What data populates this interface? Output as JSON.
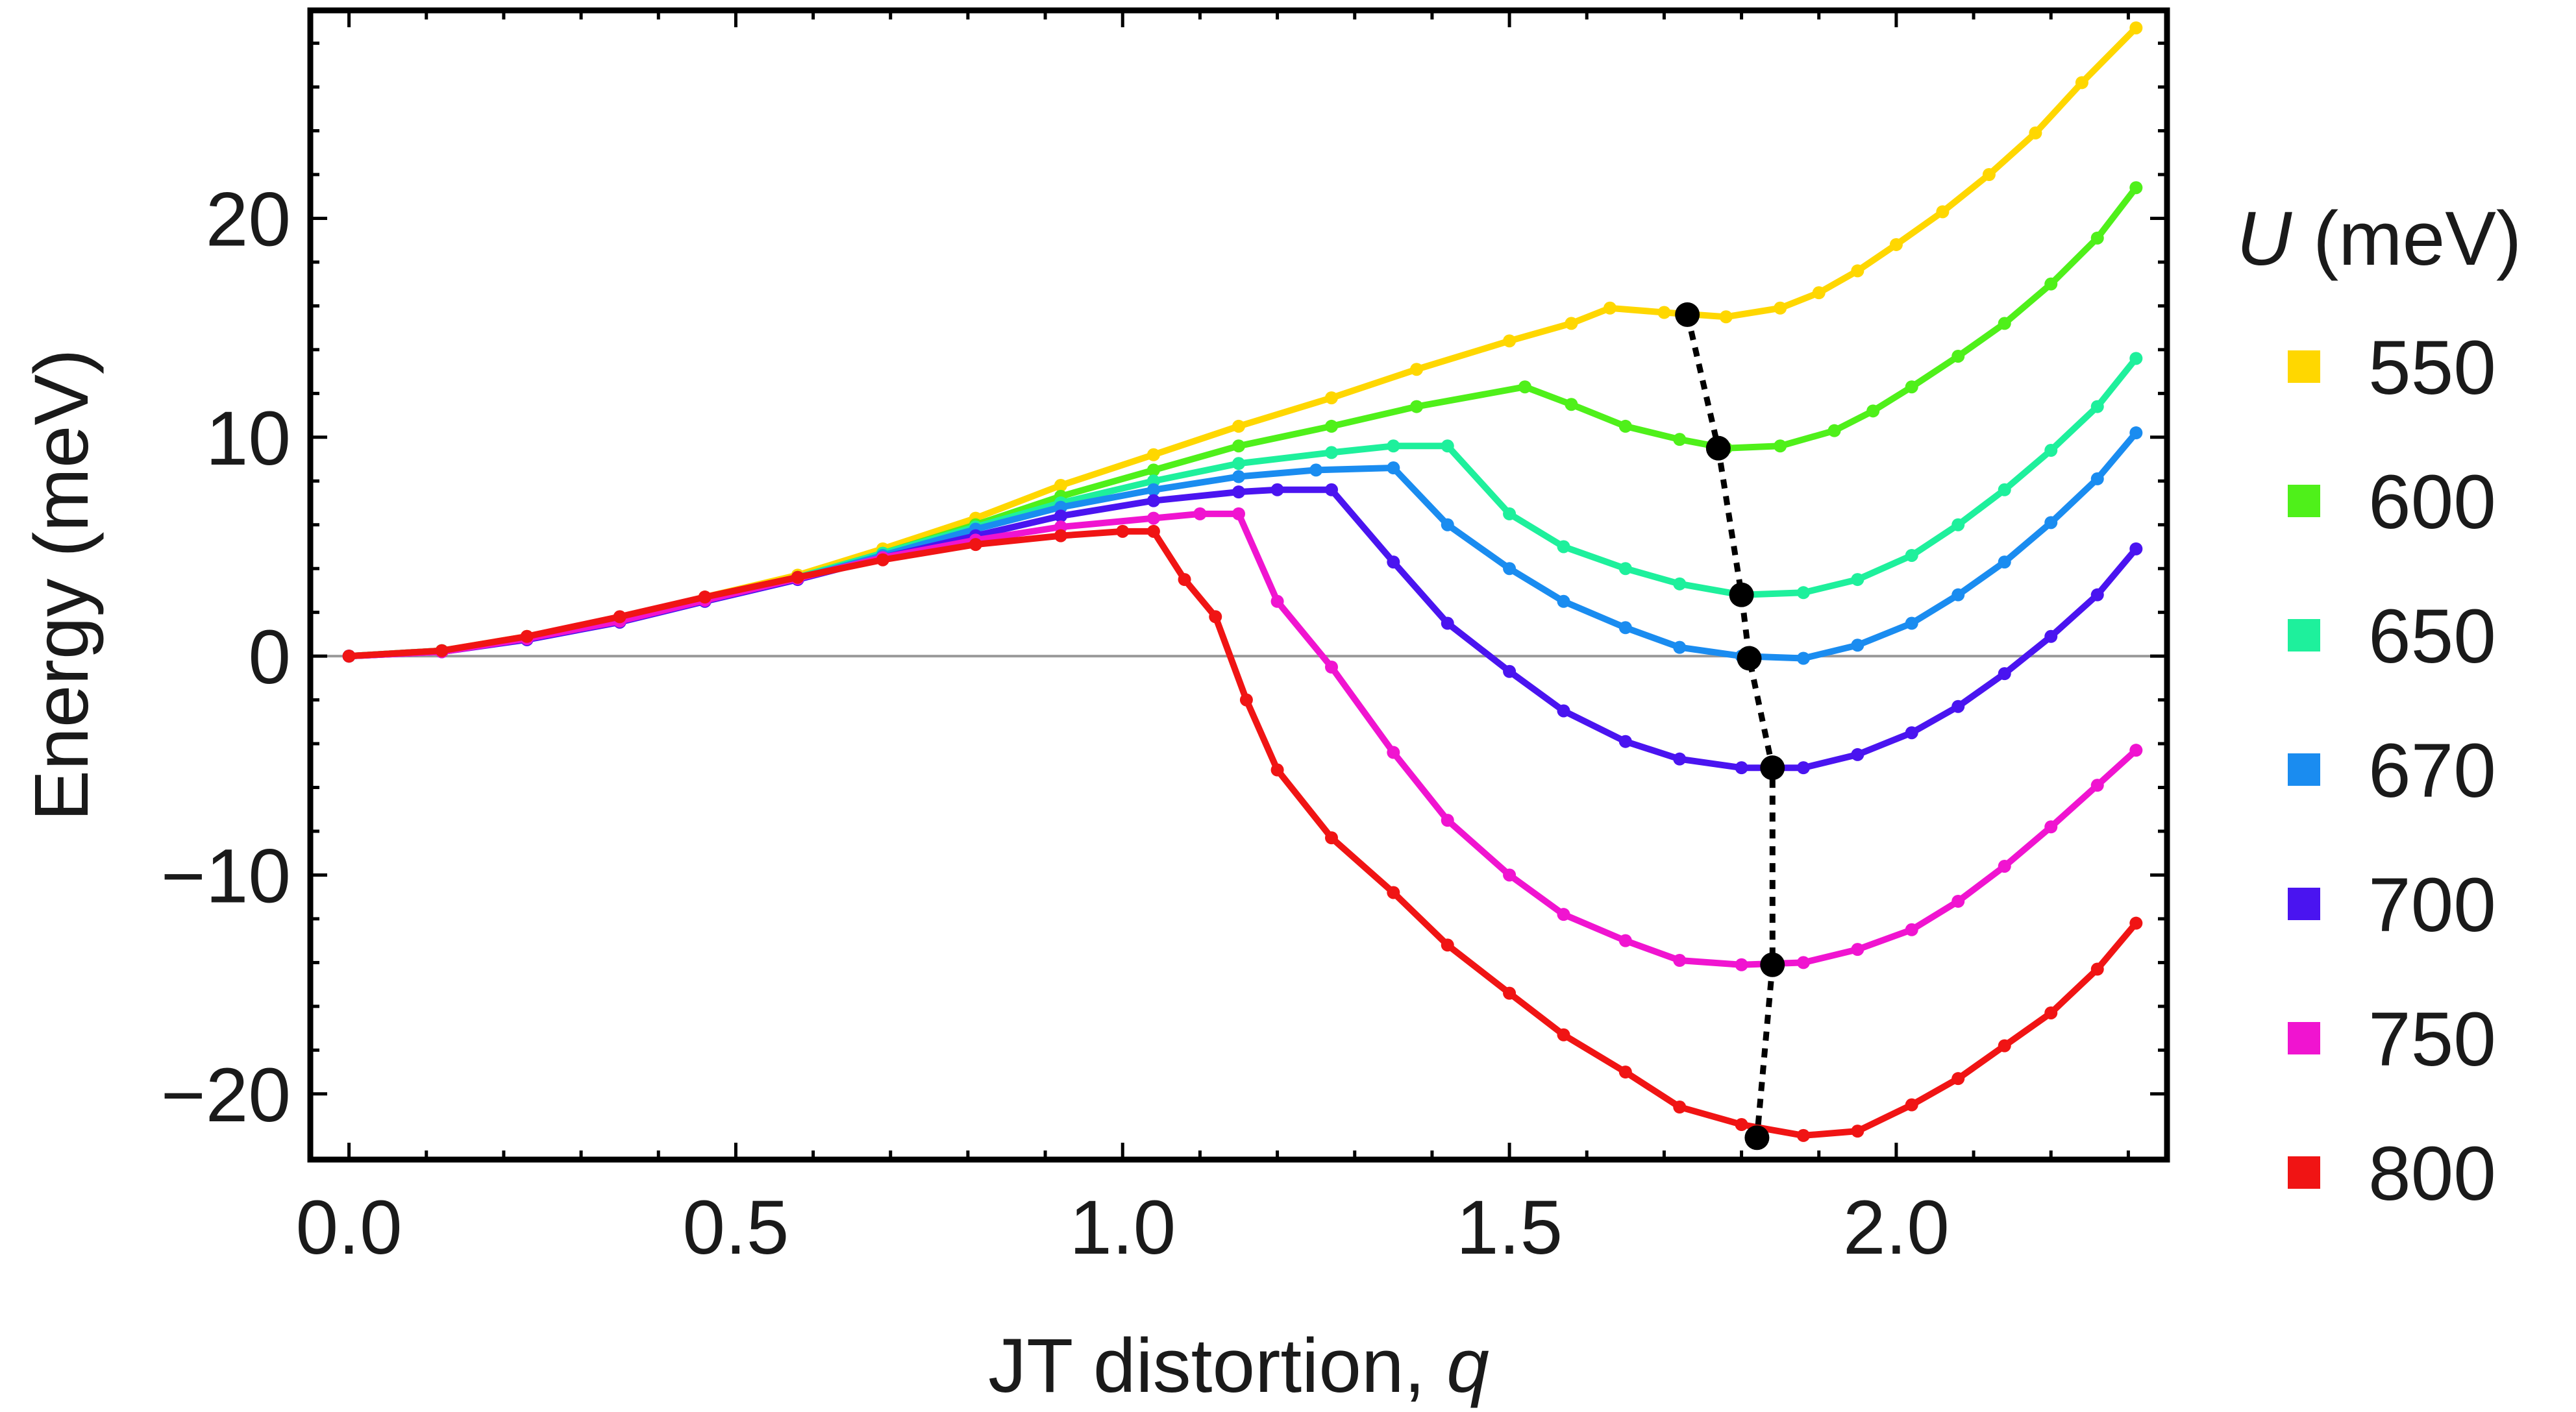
{
  "chart_data": {
    "type": "line",
    "xlabel": "JT distortion,",
    "xlabel_var": "q",
    "ylabel": "Energy (meV)",
    "xlim": [
      -0.05,
      2.35
    ],
    "ylim": [
      -23,
      29.5
    ],
    "x_ticks": [
      {
        "value": 0.0,
        "label": "0.0"
      },
      {
        "value": 0.5,
        "label": "0.5"
      },
      {
        "value": 1.0,
        "label": "1.0"
      },
      {
        "value": 1.5,
        "label": "1.5"
      },
      {
        "value": 2.0,
        "label": "2.0"
      }
    ],
    "y_ticks": [
      {
        "value": -20,
        "label": "−20"
      },
      {
        "value": -10,
        "label": "−10"
      },
      {
        "value": 0,
        "label": "0"
      },
      {
        "value": 10,
        "label": "10"
      },
      {
        "value": 20,
        "label": "20"
      }
    ],
    "zero_line": true,
    "grid": false,
    "legend": {
      "position": "right",
      "title_var": "U",
      "title_unit": "(meV)"
    },
    "series": [
      {
        "name": "550",
        "color": "#ffd700",
        "x": [
          0.0,
          0.12,
          0.23,
          0.35,
          0.46,
          0.58,
          0.69,
          0.81,
          0.92,
          1.04,
          1.15,
          1.27,
          1.38,
          1.5,
          1.58,
          1.63,
          1.7,
          1.78,
          1.85,
          1.9,
          1.95,
          2.0,
          2.06,
          2.12,
          2.18,
          2.24,
          2.31
        ],
        "y": [
          0.0,
          0.25,
          0.9,
          1.75,
          2.7,
          3.7,
          4.9,
          6.3,
          7.8,
          9.2,
          10.5,
          11.8,
          13.1,
          14.4,
          15.2,
          15.9,
          15.7,
          15.5,
          15.9,
          16.6,
          17.6,
          18.8,
          20.3,
          22.0,
          23.9,
          26.2,
          28.7
        ]
      },
      {
        "name": "600",
        "color": "#4ff01a",
        "x": [
          0.0,
          0.12,
          0.23,
          0.35,
          0.46,
          0.58,
          0.69,
          0.81,
          0.92,
          1.04,
          1.15,
          1.27,
          1.38,
          1.52,
          1.58,
          1.65,
          1.72,
          1.78,
          1.85,
          1.92,
          1.97,
          2.02,
          2.08,
          2.14,
          2.2,
          2.26,
          2.31
        ],
        "y": [
          0.0,
          0.25,
          0.85,
          1.7,
          2.65,
          3.6,
          4.7,
          6.0,
          7.3,
          8.5,
          9.6,
          10.5,
          11.4,
          12.3,
          11.5,
          10.5,
          9.9,
          9.5,
          9.6,
          10.3,
          11.2,
          12.3,
          13.7,
          15.2,
          17.0,
          19.1,
          21.4
        ]
      },
      {
        "name": "650",
        "color": "#1ef09c",
        "x": [
          0.0,
          0.12,
          0.23,
          0.35,
          0.46,
          0.58,
          0.69,
          0.81,
          0.92,
          1.04,
          1.15,
          1.27,
          1.35,
          1.42,
          1.5,
          1.57,
          1.65,
          1.72,
          1.8,
          1.88,
          1.95,
          2.02,
          2.08,
          2.14,
          2.2,
          2.26,
          2.31
        ],
        "y": [
          0.0,
          0.25,
          0.85,
          1.7,
          2.6,
          3.6,
          4.7,
          5.9,
          7.0,
          8.0,
          8.8,
          9.3,
          9.6,
          9.6,
          6.5,
          5.0,
          4.0,
          3.3,
          2.8,
          2.9,
          3.5,
          4.6,
          6.0,
          7.6,
          9.4,
          11.4,
          13.6
        ]
      },
      {
        "name": "670",
        "color": "#1a8cf0",
        "x": [
          0.0,
          0.12,
          0.23,
          0.35,
          0.46,
          0.58,
          0.69,
          0.81,
          0.92,
          1.04,
          1.15,
          1.25,
          1.35,
          1.42,
          1.5,
          1.57,
          1.65,
          1.72,
          1.8,
          1.88,
          1.95,
          2.02,
          2.08,
          2.14,
          2.2,
          2.26,
          2.31
        ],
        "y": [
          0.0,
          0.2,
          0.8,
          1.6,
          2.55,
          3.55,
          4.6,
          5.8,
          6.8,
          7.6,
          8.2,
          8.5,
          8.6,
          6.0,
          4.0,
          2.5,
          1.3,
          0.4,
          0.0,
          -0.1,
          0.5,
          1.5,
          2.8,
          4.3,
          6.1,
          8.1,
          10.2
        ]
      },
      {
        "name": "700",
        "color": "#4a14f0",
        "x": [
          0.0,
          0.12,
          0.23,
          0.35,
          0.46,
          0.58,
          0.69,
          0.81,
          0.92,
          1.04,
          1.15,
          1.2,
          1.27,
          1.35,
          1.42,
          1.5,
          1.57,
          1.65,
          1.72,
          1.8,
          1.88,
          1.95,
          2.02,
          2.08,
          2.14,
          2.2,
          2.26,
          2.31
        ],
        "y": [
          0.0,
          0.2,
          0.75,
          1.55,
          2.5,
          3.5,
          4.5,
          5.5,
          6.4,
          7.1,
          7.5,
          7.6,
          7.6,
          4.3,
          1.5,
          -0.7,
          -2.5,
          -3.9,
          -4.7,
          -5.1,
          -5.1,
          -4.5,
          -3.5,
          -2.3,
          -0.8,
          0.9,
          2.8,
          4.9
        ]
      },
      {
        "name": "750",
        "color": "#f014d0",
        "x": [
          0.0,
          0.12,
          0.23,
          0.35,
          0.46,
          0.58,
          0.69,
          0.81,
          0.92,
          1.04,
          1.1,
          1.15,
          1.2,
          1.27,
          1.35,
          1.42,
          1.5,
          1.57,
          1.65,
          1.72,
          1.8,
          1.88,
          1.95,
          2.02,
          2.08,
          2.14,
          2.2,
          2.26,
          2.31
        ],
        "y": [
          0.0,
          0.2,
          0.8,
          1.6,
          2.55,
          3.55,
          4.5,
          5.3,
          5.9,
          6.3,
          6.5,
          6.5,
          2.5,
          -0.5,
          -4.4,
          -7.5,
          -10.0,
          -11.8,
          -13.0,
          -13.9,
          -14.1,
          -14.0,
          -13.4,
          -12.5,
          -11.2,
          -9.6,
          -7.8,
          -5.9,
          -4.3
        ]
      },
      {
        "name": "800",
        "color": "#f01414",
        "x": [
          0.0,
          0.12,
          0.23,
          0.35,
          0.46,
          0.58,
          0.69,
          0.81,
          0.92,
          1.0,
          1.04,
          1.08,
          1.12,
          1.16,
          1.2,
          1.27,
          1.35,
          1.42,
          1.5,
          1.57,
          1.65,
          1.72,
          1.8,
          1.88,
          1.95,
          2.02,
          2.08,
          2.14,
          2.2,
          2.26,
          2.31
        ],
        "y": [
          0.0,
          0.25,
          0.9,
          1.8,
          2.7,
          3.6,
          4.4,
          5.1,
          5.5,
          5.7,
          5.7,
          3.5,
          1.8,
          -2.0,
          -5.2,
          -8.3,
          -10.8,
          -13.2,
          -15.4,
          -17.3,
          -19.0,
          -20.6,
          -21.4,
          -21.9,
          -21.7,
          -20.5,
          -19.3,
          -17.8,
          -16.3,
          -14.3,
          -12.2
        ]
      }
    ],
    "minima": {
      "color": "#000000",
      "style": "dotted",
      "x": [
        1.73,
        1.77,
        1.8,
        1.81,
        1.84,
        1.84,
        1.82
      ],
      "y": [
        15.6,
        9.5,
        2.8,
        -0.1,
        -5.1,
        -14.1,
        -22.0
      ]
    }
  }
}
